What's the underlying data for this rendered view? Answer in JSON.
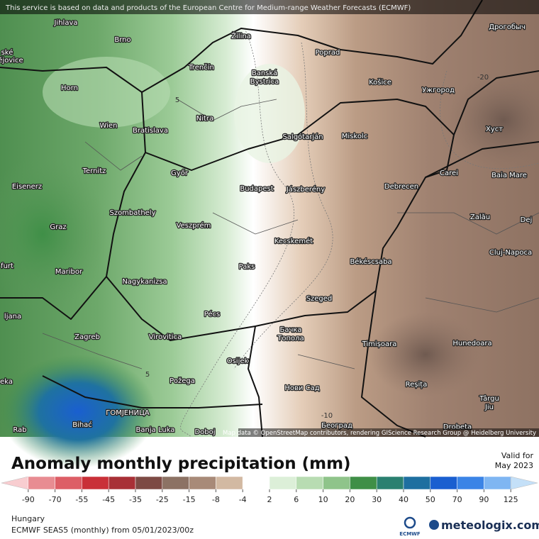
{
  "banner": "This service is based on data and products of the European Centre for Medium-range Weather Forecasts (ECMWF)",
  "map": {
    "labels": [
      {
        "lines": [
          "Jihlava"
        ]
      },
      {
        "lines": [
          "Brno"
        ]
      },
      {
        "lines": [
          "ské"
        ]
      },
      {
        "lines": [
          "ějovice"
        ]
      },
      {
        "lines": [
          "Žilina"
        ]
      },
      {
        "lines": [
          "Poprad"
        ]
      },
      {
        "lines": [
          "Дрогобыч"
        ]
      },
      {
        "lines": [
          "Trenčín"
        ]
      },
      {
        "lines": [
          "Banská",
          "Bystrica"
        ]
      },
      {
        "lines": [
          "Košice"
        ]
      },
      {
        "lines": [
          "Ужгород"
        ]
      },
      {
        "lines": [
          "Horn"
        ]
      },
      {
        "lines": [
          "Nitra"
        ]
      },
      {
        "lines": [
          "Wien"
        ]
      },
      {
        "lines": [
          "Bratislava"
        ]
      },
      {
        "lines": [
          "Salgótarján"
        ]
      },
      {
        "lines": [
          "Miskolc"
        ]
      },
      {
        "lines": [
          "Хуст"
        ]
      },
      {
        "lines": [
          "Ternitz"
        ]
      },
      {
        "lines": [
          "Győr"
        ]
      },
      {
        "lines": [
          "Carei"
        ]
      },
      {
        "lines": [
          "Baia Mare"
        ]
      },
      {
        "lines": [
          "Eisenerz"
        ]
      },
      {
        "lines": [
          "Budapest"
        ]
      },
      {
        "lines": [
          "Jászberény"
        ]
      },
      {
        "lines": [
          "Debrecen"
        ]
      },
      {
        "lines": [
          "Szombathely"
        ]
      },
      {
        "lines": [
          "Zalău"
        ]
      },
      {
        "lines": [
          "Dej"
        ]
      },
      {
        "lines": [
          "Graz"
        ]
      },
      {
        "lines": [
          "Veszprém"
        ]
      },
      {
        "lines": [
          "Cluj-Napoca"
        ]
      },
      {
        "lines": [
          "Kecskemét"
        ]
      },
      {
        "lines": [
          "furt"
        ]
      },
      {
        "lines": [
          "Maribor"
        ]
      },
      {
        "lines": [
          "Paks"
        ]
      },
      {
        "lines": [
          "Békéscsaba"
        ]
      },
      {
        "lines": [
          "Nagykanizsa"
        ]
      },
      {
        "lines": [
          "Szeged"
        ]
      },
      {
        "lines": [
          "ljana"
        ]
      },
      {
        "lines": [
          "Pécs"
        ]
      },
      {
        "lines": [
          "Бачка",
          "Топола"
        ]
      },
      {
        "lines": [
          "Zagreb"
        ]
      },
      {
        "lines": [
          "Virovitica"
        ]
      },
      {
        "lines": [
          "Timișoara"
        ]
      },
      {
        "lines": [
          "Hunedoara"
        ]
      },
      {
        "lines": [
          "Osijek"
        ]
      },
      {
        "lines": [
          "eka"
        ]
      },
      {
        "lines": [
          "Požega"
        ]
      },
      {
        "lines": [
          "Reșița"
        ]
      },
      {
        "lines": [
          "Нови Сад"
        ]
      },
      {
        "lines": [
          "Târgu",
          "Jiu"
        ]
      },
      {
        "lines": [
          "ГОМЈЕНИЦА"
        ]
      },
      {
        "lines": [
          "Bihać"
        ]
      },
      {
        "lines": [
          "Banja Luka"
        ]
      },
      {
        "lines": [
          "Београд"
        ]
      },
      {
        "lines": [
          "Drobeta"
        ]
      },
      {
        "lines": [
          "Rab"
        ]
      },
      {
        "lines": [
          "Doboj"
        ]
      }
    ],
    "contour_labels": [
      "-20",
      "5",
      "5",
      "-10"
    ],
    "attribution": "Map data © OpenStreetMap contributors, rendering GIScience Research Group @ Heidelberg University"
  },
  "legend": {
    "title": "Anomaly monthly precipitation (mm)",
    "valid_label": "Valid for",
    "valid_date": "May 2023",
    "colors": [
      "#f8cdd0",
      "#e88c92",
      "#dd5e66",
      "#c93038",
      "#a83036",
      "#7d4a44",
      "#8c7264",
      "#a88a78",
      "#d2b9a2",
      "#ffffff",
      "#dcefd8",
      "#b8dcb2",
      "#8fc48a",
      "#3f8f47",
      "#2a8070",
      "#1e6fa0",
      "#1a5fd0",
      "#3b84e6",
      "#7fb6f2",
      "#c4e0f8"
    ],
    "ticks": [
      -90,
      -70,
      -55,
      -45,
      -35,
      -25,
      -15,
      -8,
      -4,
      2,
      6,
      10,
      20,
      30,
      40,
      50,
      70,
      90,
      125
    ]
  },
  "footer": {
    "region": "Hungary",
    "model": "ECMWF SEAS5 (monthly) from 05/01/2023/00z",
    "ecmwf_logo": "ECMWF",
    "brand": "meteologix.com"
  }
}
